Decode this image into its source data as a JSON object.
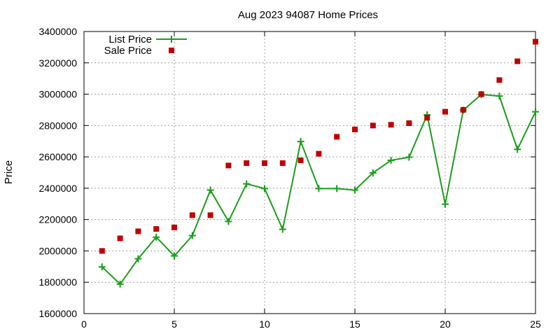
{
  "chart_data": {
    "type": "line",
    "title": "Aug 2023 94087 Home Prices",
    "xlabel": "",
    "ylabel": "Price",
    "xlim": [
      0,
      25
    ],
    "ylim": [
      1600000,
      3400000
    ],
    "xticks": [
      0,
      5,
      10,
      15,
      20,
      25
    ],
    "yticks": [
      1600000,
      1800000,
      2000000,
      2200000,
      2400000,
      2600000,
      2800000,
      3000000,
      3200000,
      3400000
    ],
    "grid": true,
    "legend_position": "top-left",
    "x": [
      1,
      2,
      3,
      4,
      5,
      6,
      7,
      8,
      9,
      10,
      11,
      12,
      13,
      14,
      15,
      16,
      17,
      18,
      19,
      20,
      21,
      22,
      23,
      24,
      25
    ],
    "series": [
      {
        "name": "List Price",
        "style": "line-with-plus-markers",
        "color": "#1a9e1a",
        "values": [
          1898000,
          1788000,
          1950000,
          2088000,
          1968000,
          2098000,
          2388000,
          2188000,
          2428000,
          2398000,
          2138000,
          2698000,
          2398000,
          2398000,
          2388000,
          2498000,
          2578000,
          2598000,
          2868000,
          2298000,
          2898000,
          2998000,
          2988000,
          2648000,
          2888000
        ]
      },
      {
        "name": "Sale Price",
        "style": "square-markers",
        "color": "#c00000",
        "values": [
          2000000,
          2080000,
          2125000,
          2140000,
          2150000,
          2228000,
          2228000,
          2545000,
          2560000,
          2560000,
          2560000,
          2578000,
          2620000,
          2728000,
          2775000,
          2800000,
          2805000,
          2815000,
          2850000,
          2888000,
          2900000,
          3000000,
          3090000,
          3210000,
          3335000
        ]
      }
    ]
  }
}
